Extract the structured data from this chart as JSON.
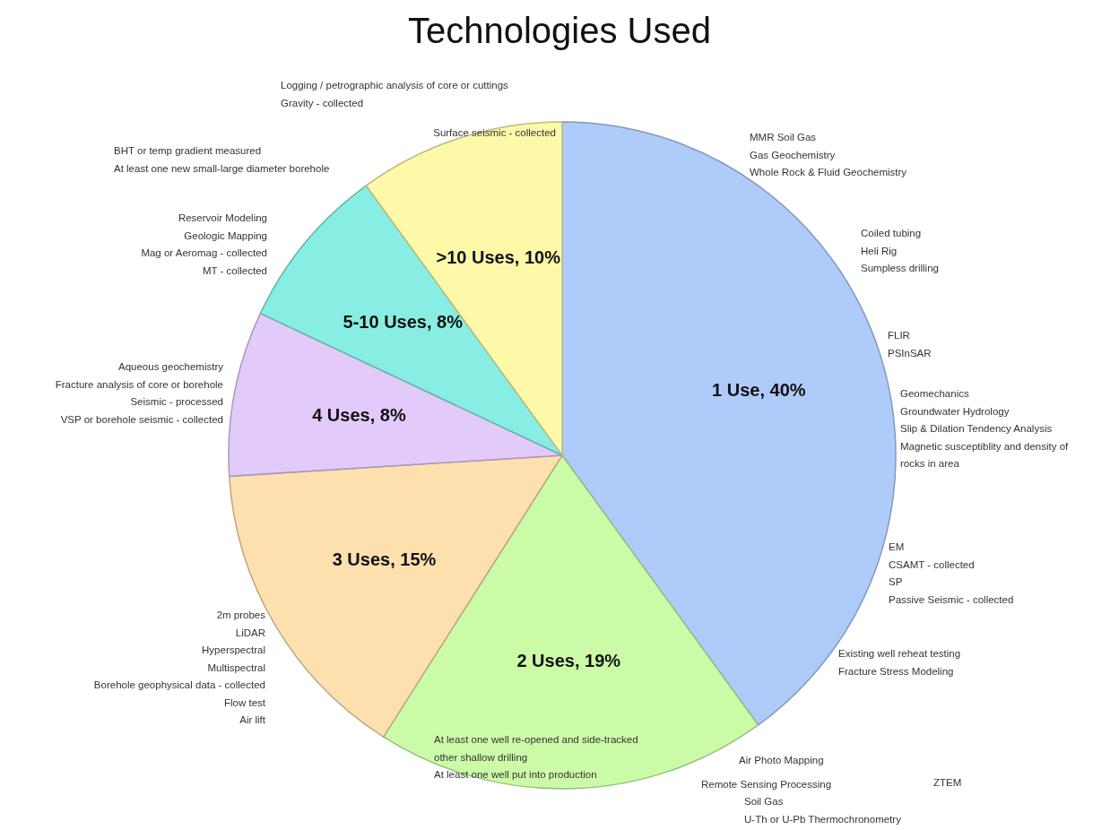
{
  "chart_data": {
    "type": "pie",
    "title": "Technologies Used",
    "categories": [
      "1 Use",
      "2 Uses",
      "3 Uses",
      "4 Uses",
      "5-10 Uses",
      ">10 Uses"
    ],
    "values": [
      40,
      19,
      15,
      8,
      8,
      10
    ],
    "value_labels": [
      "40%",
      "19%",
      "15%",
      "8%",
      "8%",
      "10%"
    ],
    "colors": [
      "#aecbfa",
      "#ccfba8",
      "#fde0ae",
      "#e2cafa",
      "#88eee3",
      "#fdf9a9"
    ],
    "annotations": [
      "Logging / petrographic analysis of core or cuttings\nGravity - collected",
      "Surface seismic - collected",
      "BHT or temp gradient measured\nAt least one new small-large diameter borehole",
      "Reservoir Modeling\nGeologic Mapping\nMag or Aeromag - collected\nMT - collected",
      "Aqueous geochemistry\nFracture analysis of core or borehole\nSeismic - processed\nVSP or borehole seismic - collected",
      "2m probes\nLiDAR\nHyperspectral\nMultispectral\nBorehole geophysical data - collected\nFlow test\nAir lift",
      "At least one well re-opened and side-tracked\nother shallow drilling\nAt least one well put into production",
      "MMR Soil Gas\nGas Geochemistry\nWhole Rock & Fluid Geochemistry",
      "Coiled tubing\nHeli Rig\nSumpless drilling",
      "FLIR\nPSInSAR",
      "Geomechanics\nGroundwater Hydrology\nSlip & Dilation Tendency Analysis\nMagnetic susceptiblity and density of\nrocks in area",
      "EM\nCSAMT - collected\nSP\nPassive Seismic - collected",
      "Existing well reheat testing\nFracture Stress Modeling",
      "Air Photo Mapping",
      "Remote Sensing Processing",
      "ZTEM",
      "Soil Gas\nU-Th or U-Pb Thermochronometry"
    ]
  }
}
